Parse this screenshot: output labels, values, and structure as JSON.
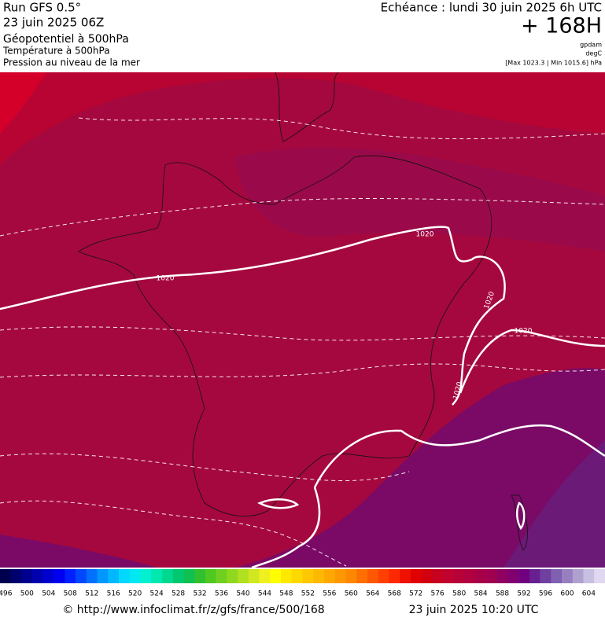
{
  "header": {
    "run": "Run GFS 0.5°",
    "run_date": "23 juin 2025 06Z",
    "field_1": "Géopotentiel à 500hPa",
    "field_2": "Température à 500hPa",
    "field_3": "Pression au niveau de la mer",
    "valid": "Echéance : lundi 30 juin 2025 6h UTC",
    "lead": "+ 168H",
    "unit_1": "gpdam",
    "unit_2": "degC",
    "pressure_range": "[Max 1023.3 | Min 1015.6] hPa"
  },
  "map": {
    "isobar_labels": [
      "1020",
      "1020",
      "1020",
      "1020",
      "1020"
    ]
  },
  "scale": {
    "labels": [
      "496",
      "500",
      "504",
      "508",
      "512",
      "516",
      "520",
      "524",
      "528",
      "532",
      "536",
      "540",
      "544",
      "548",
      "552",
      "556",
      "560",
      "564",
      "568",
      "572",
      "576",
      "580",
      "584",
      "588",
      "592",
      "596",
      "600",
      "604"
    ],
    "colors": [
      "#000050",
      "#00006e",
      "#000090",
      "#0000b0",
      "#0000d0",
      "#0000f0",
      "#0020ff",
      "#0048ff",
      "#0070ff",
      "#0098ff",
      "#00b8ff",
      "#00d8ff",
      "#00e8f0",
      "#00f0d0",
      "#00e8b0",
      "#00d890",
      "#00c870",
      "#10c050",
      "#30c030",
      "#50c820",
      "#70d020",
      "#90d820",
      "#b0e020",
      "#d0e820",
      "#f0f020",
      "#ffff00",
      "#ffe800",
      "#ffd800",
      "#ffc800",
      "#ffb800",
      "#ffa800",
      "#ff9800",
      "#ff8800",
      "#ff7000",
      "#ff5800",
      "#ff4000",
      "#ff2800",
      "#f01000",
      "#e00000",
      "#d00010",
      "#c80020",
      "#c00030",
      "#b80038",
      "#b00040",
      "#a80048",
      "#a00050",
      "#900060",
      "#800070",
      "#700080",
      "#682090",
      "#7040a0",
      "#8060b0",
      "#9880c0",
      "#b0a0d0",
      "#c8c0e0",
      "#e0d8f0"
    ]
  },
  "footer": {
    "url": "© http://www.infoclimat.fr/z/gfs/france/500/168",
    "date": "23 juin 2025 10:20 UTC"
  }
}
